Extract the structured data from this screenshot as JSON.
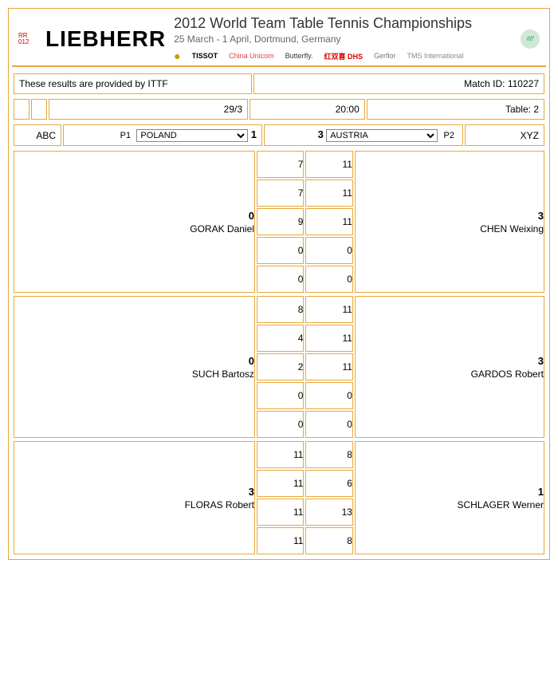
{
  "header": {
    "rr_code": "RR\n012",
    "brand": "LIEBHERR",
    "event_title": "2012 World  Team Table Tennis Championships",
    "event_dates": "25 March - 1 April, Dortmund, Germany",
    "ittf_label": "ittf",
    "sponsors": [
      "TISSOT",
      "China Unicom",
      "Butterfly.",
      "红双喜 DHS",
      "Gerflor",
      "TMS International"
    ]
  },
  "info": {
    "results_by": "These results are provided by ITTF",
    "match_id_label": "Match ID: ",
    "match_id": "110227",
    "date": "29/3",
    "time": "20:00",
    "table_label": "Table: ",
    "table": "2"
  },
  "teams": {
    "abc": "ABC",
    "xyz": "XYZ",
    "p1_label": "P1",
    "p2_label": "P2",
    "team1": "POLAND",
    "team2": "AUSTRIA",
    "score1": "1",
    "score2": "3"
  },
  "matches": [
    {
      "p1_sets": "0",
      "p1_name": "GORAK Daniel",
      "p2_sets": "3",
      "p2_name": "CHEN Weixing",
      "games": [
        [
          "7",
          "11"
        ],
        [
          "7",
          "11"
        ],
        [
          "9",
          "11"
        ],
        [
          "0",
          "0"
        ],
        [
          "0",
          "0"
        ]
      ]
    },
    {
      "p1_sets": "0",
      "p1_name": "SUCH Bartosz",
      "p2_sets": "3",
      "p2_name": "GARDOS Robert",
      "games": [
        [
          "8",
          "11"
        ],
        [
          "4",
          "11"
        ],
        [
          "2",
          "11"
        ],
        [
          "0",
          "0"
        ],
        [
          "0",
          "0"
        ]
      ]
    },
    {
      "p1_sets": "3",
      "p1_name": "FLORAS Robert",
      "p2_sets": "1",
      "p2_name": "SCHLAGER Werner",
      "games": [
        [
          "11",
          "8"
        ],
        [
          "11",
          "6"
        ],
        [
          "11",
          "13"
        ],
        [
          "11",
          "8"
        ]
      ]
    }
  ]
}
